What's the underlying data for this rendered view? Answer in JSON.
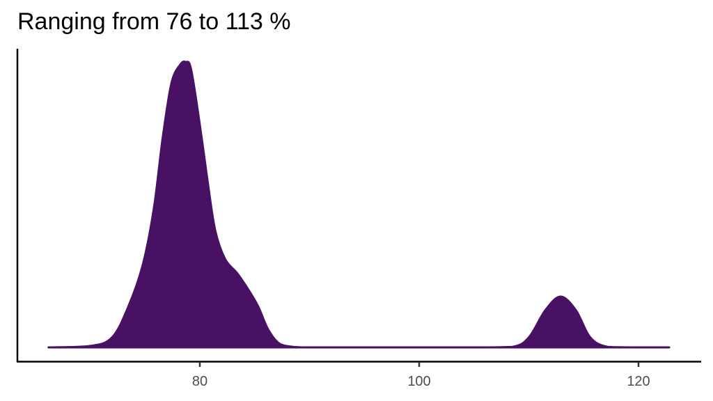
{
  "title": "Ranging from 76 to 113 %",
  "colors": {
    "fill": "#481163",
    "outline": "#481163",
    "axis": "#000000",
    "tick_label": "#4d4d4d",
    "background": "#ffffff"
  },
  "x_axis": {
    "ticks": [
      {
        "value": 80,
        "label": "80"
      },
      {
        "value": 100,
        "label": "100"
      },
      {
        "value": 120,
        "label": "120"
      }
    ]
  },
  "chart_data": {
    "type": "area",
    "title": "Ranging from 76 to 113 %",
    "subtitle": "",
    "xlabel": "",
    "ylabel": "",
    "x_ticks": [
      80,
      100,
      120
    ],
    "y_ticks": [],
    "xlim": [
      63,
      125
    ],
    "grid": false,
    "legend": null,
    "description": "Kernel density plot, bimodal: main peak near 78.7 with a shoulder near 83.5, secondary small peak near 112.9",
    "series": [
      {
        "name": "density",
        "x": [
          66.2,
          70,
          72,
          73.5,
          74.8,
          75.8,
          76.6,
          77.4,
          78.2,
          78.7,
          79.2,
          80.0,
          80.7,
          81.4,
          82.3,
          83.4,
          84.3,
          85.3,
          86.2,
          87.2,
          88.5,
          90,
          95,
          100,
          105,
          108.5,
          110,
          111.5,
          112.9,
          114.3,
          115.6,
          117.2,
          120,
          122.8
        ],
        "values": [
          0.0,
          0.005,
          0.035,
          0.145,
          0.29,
          0.485,
          0.73,
          0.925,
          0.99,
          1.0,
          0.975,
          0.78,
          0.585,
          0.41,
          0.31,
          0.26,
          0.21,
          0.145,
          0.065,
          0.015,
          0.002,
          0.0,
          0.0,
          0.0,
          0.0,
          0.002,
          0.035,
          0.13,
          0.178,
          0.13,
          0.035,
          0.002,
          0.0,
          0.0
        ]
      }
    ]
  }
}
